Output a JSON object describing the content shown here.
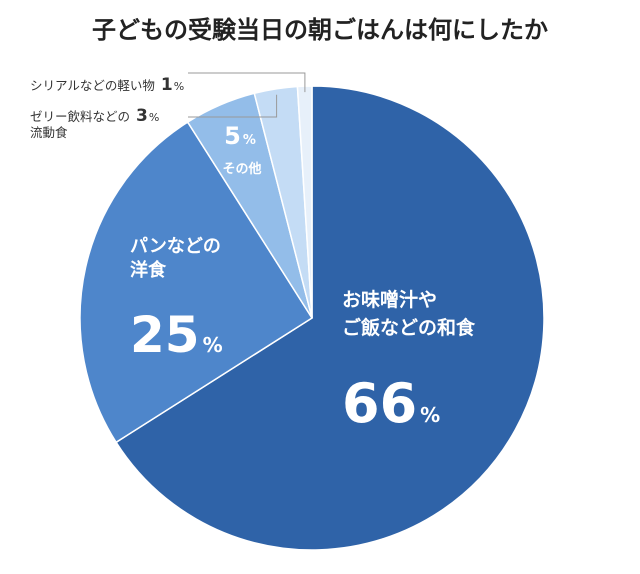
{
  "chart_data": {
    "type": "pie",
    "title": "子どもの受験当日の朝ごはんは何にしたか",
    "slices": [
      {
        "label_lines": [
          "お味噌汁や",
          "ご飯などの和食"
        ],
        "value": 66,
        "pct": "%",
        "color": "#2f63a8"
      },
      {
        "label_lines": [
          "パンなどの",
          "洋食"
        ],
        "value": 25,
        "pct": "%",
        "color": "#4e86cb"
      },
      {
        "label_lines": [
          "その他"
        ],
        "value": 5,
        "pct": "%",
        "color": "#93bde9"
      },
      {
        "label_lines": [
          "ゼリー飲料などの",
          "流動食"
        ],
        "value": 3,
        "pct": "%",
        "color": "#c4dcf5"
      },
      {
        "label_lines": [
          "シリアルなどの軽い物"
        ],
        "value": 1,
        "pct": "%",
        "color": "#e7f0fa"
      }
    ]
  }
}
